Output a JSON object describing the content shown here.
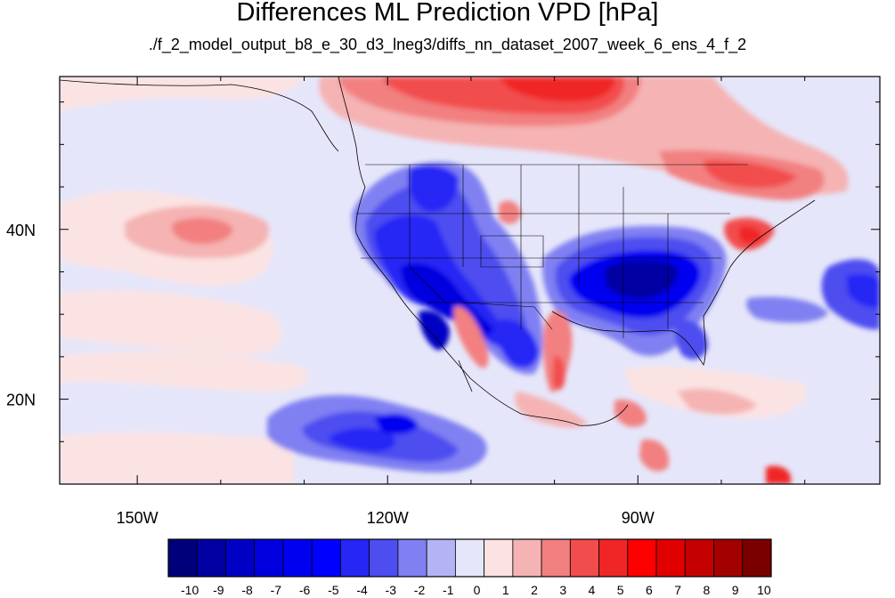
{
  "figure": {
    "title": "Differences ML Prediction VPD [hPa]",
    "subtitle": "./f_2_model_output_b8_e_30_d3_lneg3/diffs_nn_dataset_2007_week_6_ens_4_f_2"
  },
  "axes": {
    "lon_ticks": [
      {
        "value": -150,
        "label": "150W"
      },
      {
        "value": -120,
        "label": "120W"
      },
      {
        "value": -90,
        "label": "90W"
      }
    ],
    "lat_ticks": [
      {
        "value": 20,
        "label": "20N"
      },
      {
        "value": 40,
        "label": "40N"
      }
    ],
    "lon_range": [
      -159.3,
      -61.0
    ],
    "lat_range": [
      10.0,
      58.0
    ]
  },
  "colorbar": {
    "labels": [
      "-10",
      "-9",
      "-8",
      "-7",
      "-6",
      "-5",
      "-4",
      "-3",
      "-2",
      "-1",
      "0",
      "1",
      "2",
      "3",
      "4",
      "5",
      "6",
      "7",
      "8",
      "9",
      "10"
    ],
    "colors": [
      "#00007a",
      "#0000a3",
      "#0000c4",
      "#0000de",
      "#0000f0",
      "#0000ff",
      "#2626f5",
      "#4d4df0",
      "#8080f2",
      "#b3b3f5",
      "#e6e6fa",
      "#fbe3e3",
      "#f5b3b3",
      "#f28080",
      "#f24d4d",
      "#f02626",
      "#ff0000",
      "#e00000",
      "#c40000",
      "#a30000",
      "#7a0000"
    ]
  },
  "chart_data": {
    "type": "heatmap",
    "title": "Differences ML Prediction VPD [hPa]",
    "subtitle": "./f_2_model_output_b8_e_30_d3_lneg3/diffs_nn_dataset_2007_week_6_ens_4_f_2",
    "x_axis_ticks": [
      "150W",
      "120W",
      "90W"
    ],
    "y_axis_ticks": [
      "20N",
      "40N"
    ],
    "colorbar_range": [
      -10,
      10
    ],
    "regions": [
      {
        "region": "southwestern US",
        "value_range": [
          -10,
          -3
        ]
      },
      {
        "region": "south-central US",
        "value_range": [
          -10,
          -3
        ]
      },
      {
        "region": "southern Canada",
        "value_range": [
          3,
          6
        ]
      },
      {
        "region": "northeastern US coast",
        "value_range": [
          3,
          6
        ]
      },
      {
        "region": "central Pacific",
        "value_range": [
          -1,
          3
        ]
      },
      {
        "region": "eastern Pacific off Mexico",
        "value_range": [
          -6,
          -2
        ]
      },
      {
        "region": "western Atlantic",
        "value_range": [
          -6,
          -2
        ]
      },
      {
        "region": "Mexico and Gulf coast",
        "value_range": [
          2,
          5
        ]
      }
    ]
  }
}
